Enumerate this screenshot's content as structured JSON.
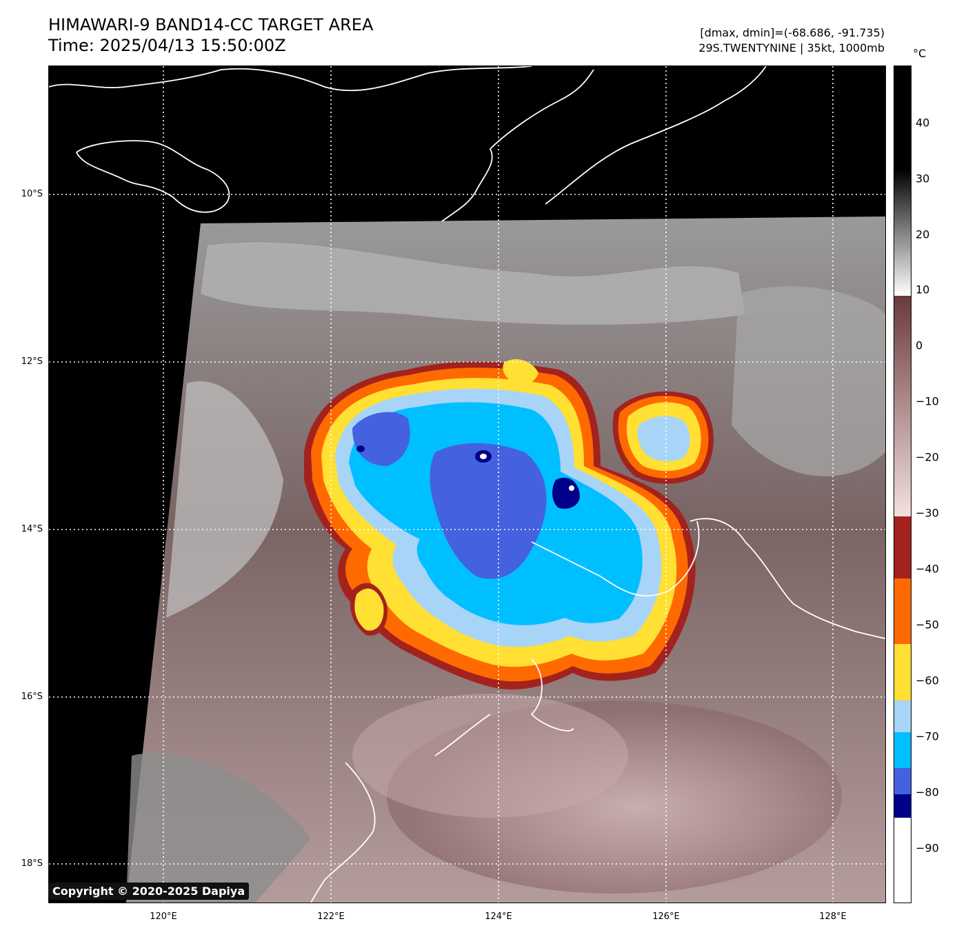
{
  "header": {
    "title_line1": "HIMAWARI-9 BAND14-CC TARGET AREA",
    "title_line2": "Time: 2025/04/13 15:50:00Z",
    "meta_line1": "[dmax, dmin]=(-68.686, -91.735)",
    "meta_line2": "29S.TWENTYNINE | 35kt, 1000mb"
  },
  "axes": {
    "lat_labels": [
      "10°S",
      "12°S",
      "14°S",
      "16°S",
      "18°S"
    ],
    "lon_labels": [
      "120°E",
      "122°E",
      "124°E",
      "126°E",
      "128°E"
    ]
  },
  "colorbar": {
    "unit": "°C",
    "ticks": [
      "40",
      "30",
      "20",
      "10",
      "0",
      "−10",
      "−20",
      "−30",
      "−40",
      "−50",
      "−60",
      "−70",
      "−80",
      "−90"
    ],
    "colors": {
      "warm": "#000000",
      "gray": "#808080",
      "brown": "#6b3a3a",
      "pink": "#e8cfcf",
      "dark_red": "#a3221e",
      "orange": "#ff6a00",
      "yellow": "#ffe033",
      "light_blue": "#a8d4f8",
      "cyan": "#00bfff",
      "royal_blue": "#4461e0",
      "navy": "#00008b",
      "white": "#ffffff"
    }
  },
  "footer": {
    "copyright": "Copyright © 2020-2025 Dapiya"
  }
}
